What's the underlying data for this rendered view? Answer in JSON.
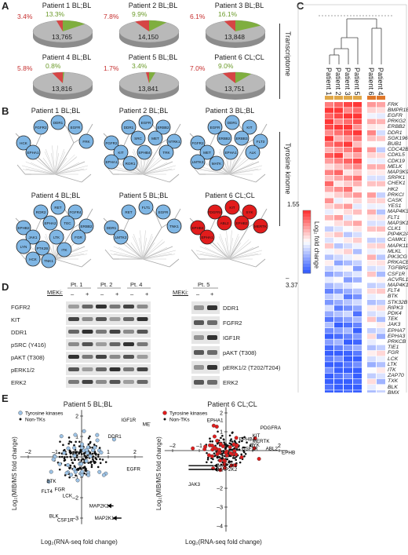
{
  "panels": {
    "A": "A",
    "B": "B",
    "C": "C",
    "D": "D",
    "E": "E"
  },
  "pies": [
    {
      "title": "Patient 1 BL;BL",
      "red": "3.4%",
      "green": "13.3%",
      "count": "13,765"
    },
    {
      "title": "Patient 2 BL;BL",
      "red": "7.8%",
      "green": "9.9%",
      "count": "14,150"
    },
    {
      "title": "Patient 3 BL;BL",
      "red": "6.1%",
      "green": "16.1%",
      "count": "13,848"
    },
    {
      "title": "Patient 4 BL;BL",
      "red": "5.8%",
      "green": "0.8%",
      "count": "13,816"
    },
    {
      "title": "Patient 5 BL;BL",
      "red": "1.7%",
      "green": "3.4%",
      "count": "13,841"
    },
    {
      "title": "Patient 6 CL;CL",
      "red": "7.0%",
      "green": "9.0%",
      "count": "13,751"
    }
  ],
  "transcriptome_label": "Transcriptome",
  "kinome_label": "Tyrosine kinome",
  "trees": [
    {
      "title": "Patient 1 BL;BL",
      "color": "#7fb6e4",
      "nodes": [
        "HCK",
        "FGFR2",
        "DDR1",
        "EGFR",
        "FRK",
        "EPHA1"
      ]
    },
    {
      "title": "Patient 2 BL;BL",
      "color": "#7fb6e4",
      "nodes": [
        "FGFR2",
        "DDR1",
        "EGFR",
        "ERBB2",
        "NTRK1",
        "KIT",
        "SRC",
        "MET",
        "TRK",
        "EPHB4",
        "EPHA1",
        "ROR1"
      ]
    },
    {
      "title": "Patient 3 BL;BL",
      "color": "#7fb6e4",
      "nodes": [
        "FGFR2",
        "EGFR",
        "DDR1",
        "KIT",
        "FLT3",
        "MET",
        "ERBB2",
        "ERBB3",
        "ALK",
        "EPHA1",
        "LMTK3",
        "MATK"
      ]
    },
    {
      "title": "Patient 4 BL;BL",
      "color": "#7fb6e4",
      "nodes": [
        "EPHB2",
        "ROR2",
        "RET",
        "FGFR4",
        "ERBB2",
        "JAK1",
        "EPHA2",
        "TEC",
        "FGR",
        "LTK",
        "LYN",
        "PTK2B",
        "ITK",
        "HCK",
        "TNK1"
      ]
    },
    {
      "title": "Patient 5 BL;BL",
      "color": "#7fb6e4",
      "nodes": [
        "DDR1",
        "RET",
        "FLT1",
        "EGFR",
        "TNK1",
        "LMTK2"
      ]
    },
    {
      "title": "Patient 6 CL;CL",
      "color": "#e21c1c",
      "nodes": [
        "EPHB4",
        "PDGFRA",
        "KIT",
        "SYK",
        "MERTK",
        "EPHA1",
        "ABL2",
        "EPHB2"
      ]
    }
  ],
  "heatmap": {
    "column_labels": [
      "Patient 1",
      "Patient 2",
      "Patient 3",
      "Patient 5",
      "Patient 6",
      "Patient 4"
    ],
    "genes": [
      "FRK",
      "BMPR1B",
      "EGFR",
      "PRKG2",
      "ERBB2",
      "DDR1",
      "SGK196",
      "BUB1",
      "CDC42BPG",
      "CDKL5",
      "CDK19",
      "MELK",
      "MAP3K9",
      "SRPK1",
      "CHEK1",
      "HK2",
      "PRKCI",
      "CASK",
      "YES1",
      "MAP4K3",
      "FLT1",
      "MAP3K12",
      "CLK1",
      "PIP4K2A",
      "CAMK1",
      "MAPK11",
      "MLKL",
      "PIK3CG",
      "PRKACB",
      "TGFBR2",
      "CSF1R",
      "ACVRL1",
      "MAP4K1",
      "FLT4",
      "BTK",
      "STK32B",
      "RIPK3",
      "PDK4",
      "TEK",
      "JAK3",
      "EPHA7",
      "EPHA3",
      "PRKCB",
      "TIE1",
      "FGR",
      "LCK",
      "LTK",
      "ITK",
      "ZAP70",
      "TXK",
      "BLK",
      "BMX"
    ],
    "scale_max": "1.55",
    "scale_min": "–3.37",
    "scale_label": "Log₂ fold change"
  },
  "western": {
    "left": {
      "treatment_label": "MEKi:",
      "groups": [
        "Pt. 1",
        "Pt. 2",
        "Pt. 4"
      ],
      "signs": [
        "–",
        "+",
        "–",
        "+",
        "–",
        "+"
      ],
      "rows": [
        "FGFR2",
        "KIT",
        "DDR1",
        "pSRC (Y416)",
        "pAKT (T308)",
        "pERK1/2",
        "ERK2"
      ]
    },
    "right": {
      "treatment_label": "MEKi:",
      "group": "Pt. 5",
      "signs": [
        "–",
        "+"
      ],
      "rows": [
        "DDR1",
        "FGFR2",
        "IGF1R",
        "pAKT (T308)",
        "pERK1/2 (T202/T204)",
        "ERK2"
      ]
    }
  },
  "scatter": [
    {
      "title": "Patient 5 BL;BL",
      "legend": [
        "Tyrosine kinases",
        "Non-TKs"
      ],
      "tk_color": "#9dc3e6",
      "xlabel": "Log₂(RNA-seq fold change)",
      "ylabel": "Log₂(MIB/MS fold change)",
      "xticks": [
        "–2",
        "–1",
        "1",
        "2"
      ],
      "yticks": [
        "2",
        "1",
        "–1",
        "–2",
        "–3"
      ],
      "labels": [
        "IGF1R",
        "MET",
        "DDR1",
        "EGFR",
        "BTK",
        "FLT4",
        "FGR",
        "LCK",
        "BLK",
        "CSF1R",
        "MAP2K2",
        "MAP2K1"
      ]
    },
    {
      "title": "Patient 6 CL;CL",
      "legend": [
        "Tyrosine kinases",
        "Non-TKs"
      ],
      "tk_color": "#e21c1c",
      "xlabel": "Log₂(RNA-seq fold change)",
      "ylabel": "Log₂(MIB/MS fold change)",
      "xticks": [
        "–2",
        "–1",
        "1",
        "2"
      ],
      "yticks": [
        "2",
        "1",
        "–1",
        "–2",
        "–3",
        "–4"
      ],
      "labels": [
        "EPHA1",
        "PDGFRA",
        "KIT",
        "MERTK",
        "EPHB4",
        "SYK",
        "ABL2",
        "CSF1R",
        "EPHB2",
        "MAP2K1",
        "MAP2K2",
        "JAK3"
      ]
    }
  ]
}
